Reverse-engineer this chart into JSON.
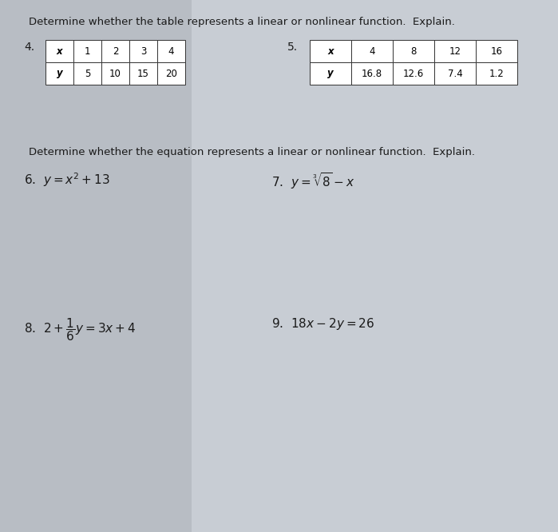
{
  "bg_color": "#c8cdd4",
  "bg_color_left_band": "#b8bdc4",
  "white_paper": "#e8eaec",
  "title1": "Determine whether the table represents a linear or nonlinear function.  Explain.",
  "title2": "Determine whether the equation represents a linear or nonlinear function.  Explain.",
  "problem4_label": "4.",
  "problem5_label": "5.",
  "table4_headers": [
    "x",
    "1",
    "2",
    "3",
    "4"
  ],
  "table4_row": [
    "y",
    "5",
    "10",
    "15",
    "20"
  ],
  "table5_headers": [
    "x",
    "4",
    "8",
    "12",
    "16"
  ],
  "table5_row": [
    "y",
    "16.8",
    "12.6",
    "7.4",
    "1.2"
  ],
  "eq6": "6.  $y = x^2 + 13$",
  "eq7": "7.  $y = \\sqrt[3]{8} - x$",
  "eq8": "8.  $2 + \\dfrac{1}{6}y = 3x + 4$",
  "eq9": "9.  $18x - 2y = 26$",
  "font_size_title": 9.5,
  "font_size_label": 10,
  "font_size_eq": 11,
  "font_size_num": 8.5
}
